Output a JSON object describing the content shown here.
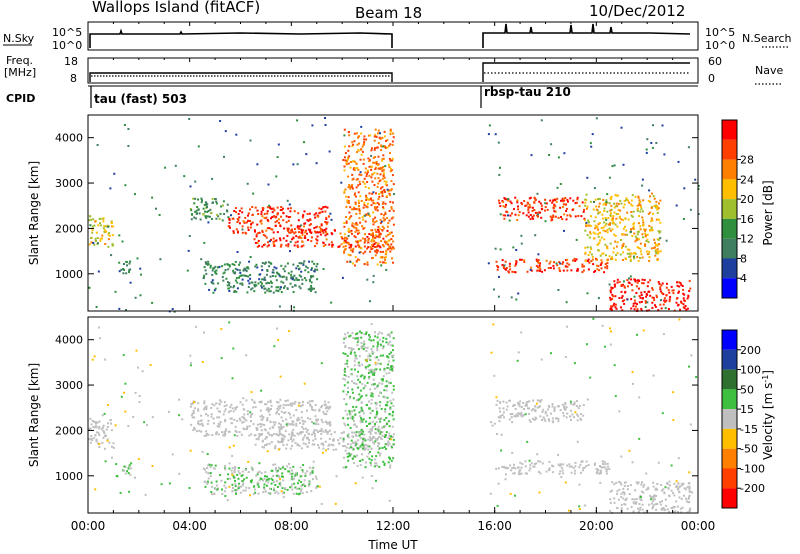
{
  "header": {
    "site": "Wallops Island (fitACF)",
    "beam": "Beam 18",
    "date": "10/Dec/2012"
  },
  "strips": {
    "nsky_label": "N.Sky",
    "nsky_ticks": [
      "10^5",
      "10^0"
    ],
    "nsearch_label": "N.Search",
    "nsearch_ticks": [
      "10^5",
      "10^0"
    ],
    "freq_label": "Freq.",
    "freq_unit": "[MHz]",
    "freq_ticks": [
      "18",
      "8"
    ],
    "nave_label": "Nave",
    "nave_ticks": [
      "60",
      "0"
    ],
    "cpid_label": "CPID",
    "cpid_segments": [
      "tau (fast) 503",
      "rbsp-tau 210"
    ]
  },
  "colors": {
    "power_scale": [
      "#0000ff",
      "#1f3f9f",
      "#3f7f5f",
      "#2f8f3f",
      "#9fbf2f",
      "#ffbf00",
      "#ff7f00",
      "#ff3f00",
      "#ff0000"
    ],
    "velocity_scale": [
      "#0000ff",
      "#1f3f9f",
      "#2f6f2f",
      "#3fbf3f",
      "#bfbfbf",
      "#ffbf00",
      "#ff7f00",
      "#ff3f00",
      "#ff0000"
    ]
  },
  "chart_data": [
    {
      "type": "heatmap",
      "title": "",
      "xlabel": "",
      "ylabel": "Slant Range [km]",
      "xlim": [
        "00:00",
        "24:00"
      ],
      "ylim": [
        180,
        4500
      ],
      "yticks": [
        "1000",
        "2000",
        "3000",
        "4000"
      ],
      "data_gap": [
        "12:00",
        "15:40"
      ],
      "colorbar": {
        "label": "Power [dB]",
        "ticks": [
          "4",
          "8",
          "12",
          "16",
          "20",
          "24",
          "28"
        ],
        "range": [
          0,
          32
        ]
      },
      "echo_regions": [
        {
          "time_start": "00:00",
          "time_end": "01:00",
          "range_start": 1600,
          "range_end": 2300,
          "power_db": 18
        },
        {
          "time_start": "01:00",
          "time_end": "01:40",
          "range_start": 1000,
          "range_end": 1300,
          "power_db": 10
        },
        {
          "time_start": "04:00",
          "time_end": "05:30",
          "range_start": 2200,
          "range_end": 2700,
          "power_db": 12
        },
        {
          "time_start": "05:30",
          "time_end": "09:30",
          "range_start": 1900,
          "range_end": 2500,
          "power_db": 28
        },
        {
          "time_start": "06:30",
          "time_end": "12:00",
          "range_start": 1600,
          "range_end": 2000,
          "power_db": 28
        },
        {
          "time_start": "04:30",
          "time_end": "09:00",
          "range_start": 600,
          "range_end": 1300,
          "power_db": 10
        },
        {
          "time_start": "10:00",
          "time_end": "12:00",
          "range_start": 1200,
          "range_end": 4200,
          "power_db": 24
        },
        {
          "time_start": "16:00",
          "time_end": "19:30",
          "range_start": 2200,
          "range_end": 2700,
          "power_db": 28
        },
        {
          "time_start": "16:00",
          "time_end": "20:30",
          "range_start": 1050,
          "range_end": 1350,
          "power_db": 28
        },
        {
          "time_start": "19:30",
          "time_end": "22:30",
          "range_start": 1300,
          "range_end": 2800,
          "power_db": 20
        },
        {
          "time_start": "20:30",
          "time_end": "23:40",
          "range_start": 200,
          "range_end": 900,
          "power_db": 30
        }
      ]
    },
    {
      "type": "heatmap",
      "title": "",
      "xlabel": "Time UT",
      "ylabel": "Slant Range [km]",
      "xlim": [
        "00:00",
        "24:00"
      ],
      "ylim": [
        180,
        4500
      ],
      "xticks": [
        "00:00",
        "04:00",
        "08:00",
        "12:00",
        "16:00",
        "20:00",
        "00:00"
      ],
      "yticks": [
        "1000",
        "2000",
        "3000",
        "4000"
      ],
      "data_gap": [
        "12:00",
        "15:40"
      ],
      "colorbar": {
        "label": "Velocity [m s^-1]",
        "ticks": [
          "200",
          "100",
          "50",
          "15",
          "-15",
          "-50",
          "-100",
          "-200"
        ],
        "range": [
          -250,
          250
        ]
      },
      "echo_regions": [
        {
          "time_start": "00:00",
          "time_end": "01:00",
          "range_start": 1600,
          "range_end": 2300,
          "velocity": 0
        },
        {
          "time_start": "01:00",
          "time_end": "01:40",
          "range_start": 1000,
          "range_end": 1300,
          "velocity": 25
        },
        {
          "time_start": "04:00",
          "time_end": "09:30",
          "range_start": 1900,
          "range_end": 2700,
          "velocity": 0
        },
        {
          "time_start": "06:30",
          "time_end": "12:00",
          "range_start": 1600,
          "range_end": 2000,
          "velocity": 0
        },
        {
          "time_start": "04:30",
          "time_end": "09:00",
          "range_start": 600,
          "range_end": 1300,
          "velocity": 25
        },
        {
          "time_start": "10:00",
          "time_end": "12:00",
          "range_start": 1200,
          "range_end": 4200,
          "velocity": 30
        },
        {
          "time_start": "16:00",
          "time_end": "19:30",
          "range_start": 2200,
          "range_end": 2700,
          "velocity": 0
        },
        {
          "time_start": "16:00",
          "time_end": "20:30",
          "range_start": 1050,
          "range_end": 1350,
          "velocity": 0
        },
        {
          "time_start": "20:30",
          "time_end": "23:40",
          "range_start": 200,
          "range_end": 900,
          "velocity": 0
        }
      ]
    }
  ]
}
